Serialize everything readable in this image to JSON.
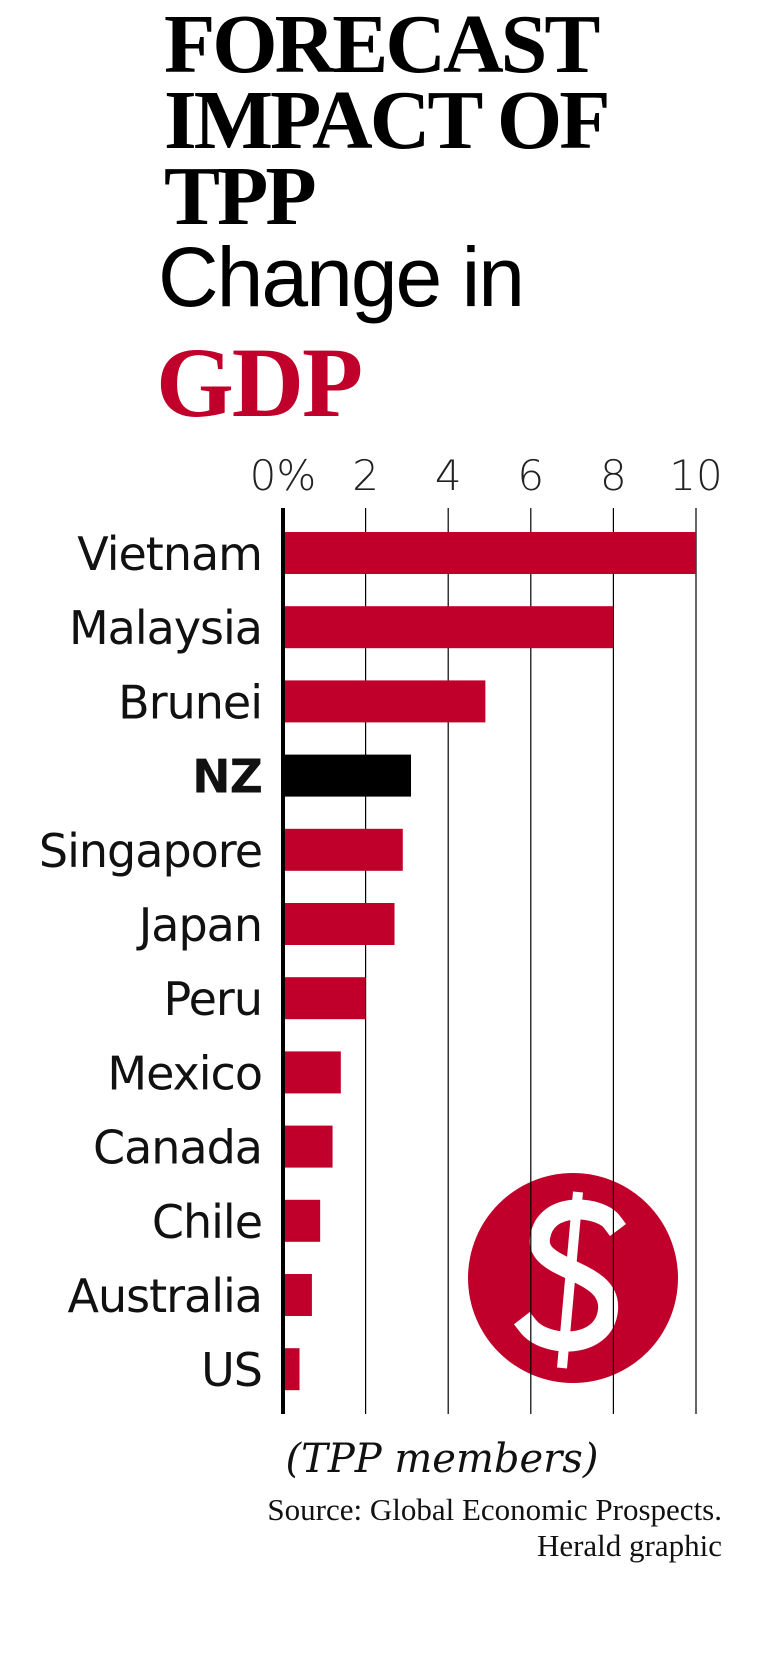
{
  "chart_data": {
    "type": "bar",
    "orientation": "horizontal",
    "title_lines": [
      "FORECAST",
      "IMPACT OF",
      "TPP"
    ],
    "subtitle": "Change in",
    "subtitle_emphasis": "GDP",
    "categories": [
      "Vietnam",
      "Malaysia",
      "Brunei",
      "NZ",
      "Singapore",
      "Japan",
      "Peru",
      "Mexico",
      "Canada",
      "Chile",
      "Australia",
      "US"
    ],
    "values": [
      10.0,
      8.0,
      4.9,
      3.1,
      2.9,
      2.7,
      2.0,
      1.4,
      1.2,
      0.9,
      0.7,
      0.4
    ],
    "color": "#c0002a",
    "colors": [
      "#c0002a",
      "#c0002a",
      "#c0002a",
      "#000000",
      "#c0002a",
      "#c0002a",
      "#c0002a",
      "#c0002a",
      "#c0002a",
      "#c0002a",
      "#c0002a",
      "#c0002a"
    ],
    "xlim": [
      0,
      10
    ],
    "xticks": [
      {
        "value": 0,
        "label": "0%"
      },
      2,
      4,
      6,
      8,
      10
    ],
    "grid": true,
    "note": "(TPP members)",
    "source": "Source: Global Economic Prospects.",
    "credit": "Herald graphic"
  }
}
